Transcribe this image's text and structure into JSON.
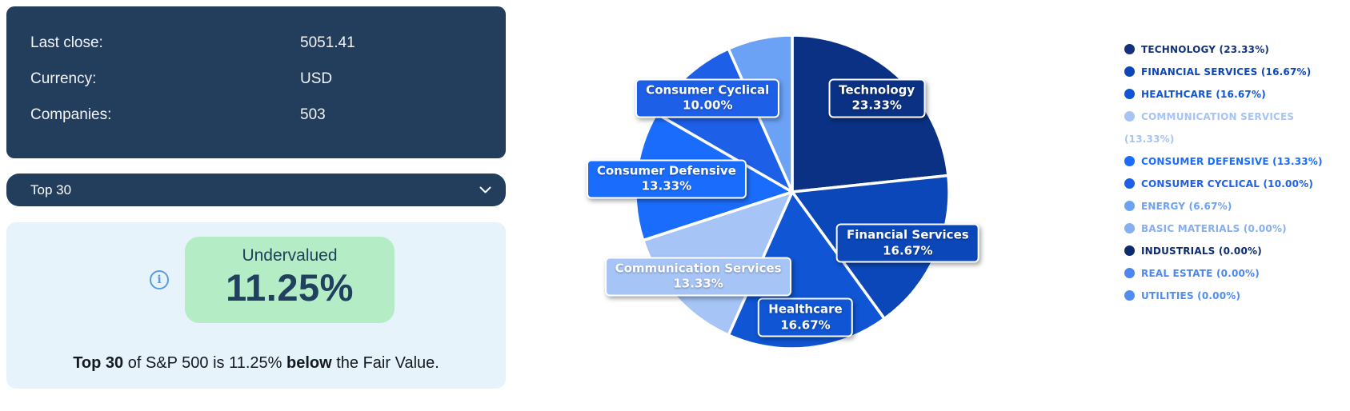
{
  "summary": {
    "rows": [
      {
        "label": "Last close:",
        "value": "5051.41"
      },
      {
        "label": "Currency:",
        "value": "USD"
      },
      {
        "label": "Companies:",
        "value": "503"
      }
    ]
  },
  "selector": {
    "value": "Top 30",
    "chevron_icon": "chevron-down"
  },
  "valuation": {
    "status": "Undervalued",
    "percent": "11.25%",
    "info_icon": "info-circle",
    "desc_bold1": "Top 30",
    "desc_mid": " of S&P 500 is 11.25% ",
    "desc_bold2": "below",
    "desc_end": " the Fair Value."
  },
  "colors": {
    "panel_navy": "#233d5c",
    "panel_light_blue": "#e7f3fb",
    "badge_green_bg": "#b4ecc5",
    "badge_text_navy": "#21405f",
    "info_icon_blue": "#5b9be0"
  },
  "chart_data": {
    "type": "pie",
    "title": "",
    "unit": "%",
    "direction": "clockwise",
    "start_angle_deg": 0,
    "center": [
      250,
      232
    ],
    "radius": 196,
    "label_radius": 158,
    "slices": [
      {
        "label": "Technology",
        "value": 23.33,
        "color": "#0a3183",
        "pie_label": true
      },
      {
        "label": "Financial Services",
        "value": 16.67,
        "color": "#0b47b8",
        "pie_label": true
      },
      {
        "label": "Healthcare",
        "value": 16.67,
        "color": "#0f55d4",
        "pie_label": true
      },
      {
        "label": "Communication Services",
        "value": 13.33,
        "color": "#a6c4f6",
        "pie_label": true
      },
      {
        "label": "Consumer Defensive",
        "value": 13.33,
        "color": "#1a6dfc",
        "pie_label": true
      },
      {
        "label": "Consumer Cyclical",
        "value": 10.0,
        "color": "#1e5fe8",
        "pie_label": true
      },
      {
        "label": "Energy",
        "value": 6.67,
        "color": "#6ba2f6",
        "pie_label": false
      }
    ],
    "legend_position": "right",
    "legend": [
      {
        "label": "TECHNOLOGY (23.33%)",
        "color": "#12327e"
      },
      {
        "label": "FINANCIAL SERVICES (16.67%)",
        "color": "#0b47b8"
      },
      {
        "label": "HEALTHCARE (16.67%)",
        "color": "#0f55d4"
      },
      {
        "label": "COMMUNICATION SERVICES (13.33%)",
        "color": "#a6c4f6"
      },
      {
        "label": "CONSUMER DEFENSIVE (13.33%)",
        "color": "#1a6dfc"
      },
      {
        "label": "CONSUMER CYCLICAL (10.00%)",
        "color": "#1e5fe8"
      },
      {
        "label": "ENERGY (6.67%)",
        "color": "#6ba2f6"
      },
      {
        "label": "BASIC MATERIALS (0.00%)",
        "color": "#85aef3"
      },
      {
        "label": "INDUSTRIALS (0.00%)",
        "color": "#0c2b6e"
      },
      {
        "label": "REAL ESTATE (0.00%)",
        "color": "#4c87ef"
      },
      {
        "label": "UTILITIES (0.00%)",
        "color": "#4f8df3"
      }
    ]
  }
}
